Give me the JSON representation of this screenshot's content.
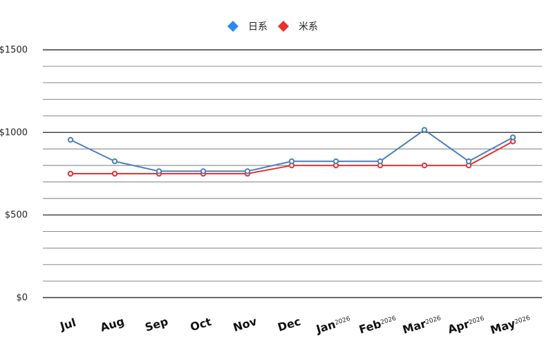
{
  "chart_data": {
    "type": "line",
    "title": "",
    "xlabel": "",
    "ylabel": "",
    "categories": [
      "Jul",
      "Aug",
      "Sep",
      "Oct",
      "Nov",
      "Dec",
      "Jan",
      "Feb",
      "Mar",
      "Apr",
      "May"
    ],
    "category_years": [
      "",
      "",
      "",
      "",
      "",
      "",
      "2026",
      "2026",
      "2026",
      "2026",
      "2026"
    ],
    "series": [
      {
        "name": "日系",
        "color": "#4a7fb8",
        "legend_color": "#2f86f0",
        "values": [
          955,
          825,
          765,
          765,
          765,
          825,
          825,
          825,
          1015,
          825,
          970
        ]
      },
      {
        "name": "米系",
        "color": "#e83030",
        "legend_color": "#e83030",
        "values": [
          750,
          750,
          750,
          750,
          750,
          800,
          800,
          800,
          800,
          800,
          945
        ]
      }
    ],
    "ylim": [
      0,
      1500
    ],
    "yticks": [
      {
        "value": 0,
        "label": "$0"
      },
      {
        "value": 500,
        "label": "$500"
      },
      {
        "value": 1000,
        "label": "$1000"
      },
      {
        "value": 1500,
        "label": "$1500"
      }
    ],
    "grid": true,
    "legend": "top-center"
  }
}
